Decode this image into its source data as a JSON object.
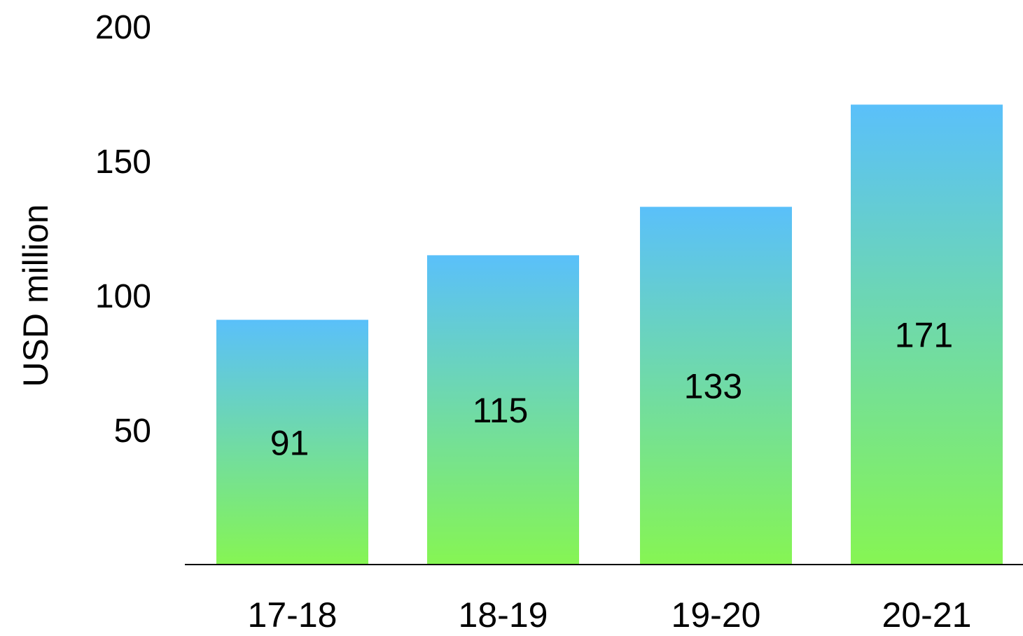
{
  "chart_data": {
    "type": "bar",
    "title": "",
    "xlabel": "",
    "ylabel": "USD million",
    "ylim": [
      0,
      200
    ],
    "y_ticks": [
      50,
      100,
      150,
      200
    ],
    "categories": [
      "17-18",
      "18-19",
      "19-20",
      "20-21"
    ],
    "values": [
      91,
      115,
      133,
      171
    ],
    "data_labels": [
      "91",
      "115",
      "133",
      "171"
    ],
    "grid": false,
    "legend": "none",
    "bar_gradient": {
      "top": "#5AC0FA",
      "bottom": "#86F553"
    },
    "baseline_color": "#000000"
  }
}
